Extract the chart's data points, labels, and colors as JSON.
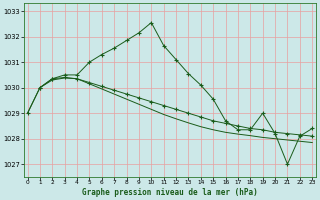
{
  "title": "Graphe pression niveau de la mer (hPa)",
  "background_color": "#cce8e8",
  "grid_color": "#e8a0a0",
  "line_color": "#1a5c1a",
  "xlim_min": -0.3,
  "xlim_max": 23.3,
  "ylim_min": 1026.5,
  "ylim_max": 1033.3,
  "yticks": [
    1027,
    1028,
    1029,
    1030,
    1031,
    1032,
    1033
  ],
  "xticks": [
    0,
    1,
    2,
    3,
    4,
    5,
    6,
    7,
    8,
    9,
    10,
    11,
    12,
    13,
    14,
    15,
    16,
    17,
    18,
    19,
    20,
    21,
    22,
    23
  ],
  "s1_x": [
    0,
    1,
    2,
    3,
    4,
    5,
    6,
    7,
    8,
    9,
    10,
    11,
    12,
    13,
    14,
    15,
    16,
    17,
    18,
    19,
    20,
    21,
    22,
    23
  ],
  "s1_y": [
    1029.0,
    1030.0,
    1030.35,
    1030.5,
    1030.5,
    1031.0,
    1031.3,
    1031.55,
    1031.85,
    1032.15,
    1032.55,
    1031.65,
    1031.1,
    1030.55,
    1030.1,
    1029.55,
    1028.7,
    1028.35,
    1028.35,
    1029.0,
    1028.2,
    1027.0,
    1028.1,
    1028.4
  ],
  "s2_x": [
    1,
    2,
    3,
    4,
    5,
    6,
    7,
    8,
    9,
    10,
    11,
    12,
    13,
    14,
    15,
    16,
    17,
    18,
    19,
    20,
    21,
    22,
    23
  ],
  "s2_y": [
    1030.0,
    1030.35,
    1030.4,
    1030.35,
    1030.2,
    1030.05,
    1029.9,
    1029.75,
    1029.6,
    1029.45,
    1029.3,
    1029.15,
    1029.0,
    1028.85,
    1028.7,
    1028.6,
    1028.5,
    1028.4,
    1028.35,
    1028.25,
    1028.2,
    1028.15,
    1028.1
  ],
  "s3_x": [
    0,
    1,
    2,
    3,
    4,
    5,
    6,
    7,
    8,
    9,
    10,
    11,
    12,
    13,
    14,
    15,
    16,
    17,
    18,
    19,
    20,
    21,
    22,
    23
  ],
  "s3_y": [
    1029.0,
    1030.0,
    1030.3,
    1030.38,
    1030.35,
    1030.15,
    1029.95,
    1029.75,
    1029.55,
    1029.35,
    1029.15,
    1028.95,
    1028.78,
    1028.62,
    1028.47,
    1028.35,
    1028.25,
    1028.18,
    1028.12,
    1028.05,
    1028.0,
    1027.95,
    1027.9,
    1027.85
  ]
}
